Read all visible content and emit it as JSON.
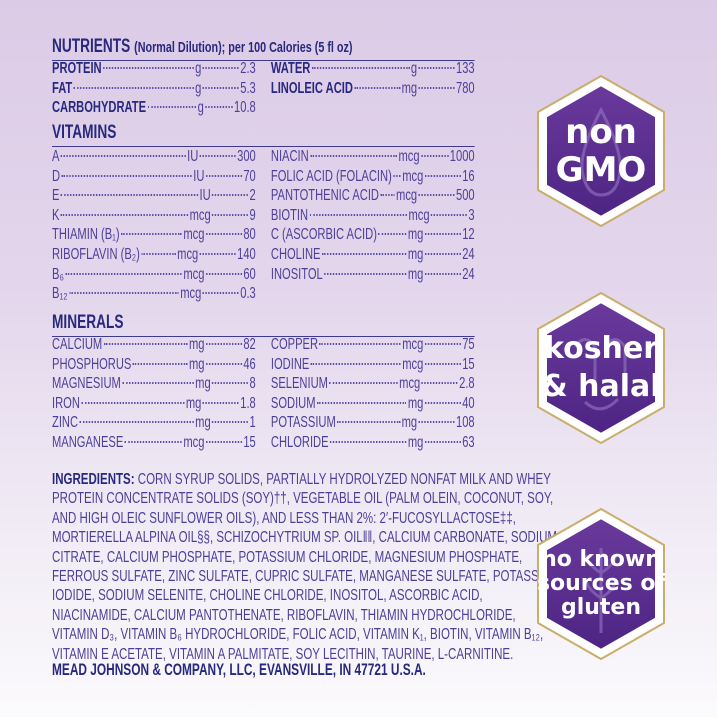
{
  "nutrients": {
    "title": "NUTRIENTS",
    "subtitle": "(Normal Dilution); per 100 Calories (5 fl oz)",
    "left": [
      {
        "name": "PROTEIN",
        "unit": "g",
        "value": "2.3"
      },
      {
        "name": "FAT",
        "unit": "g",
        "value": "5.3"
      },
      {
        "name": "CARBOHYDRATE",
        "unit": "g",
        "value": "10.8"
      }
    ],
    "right": [
      {
        "name": "WATER",
        "unit": "g",
        "value": "133"
      },
      {
        "name": "LINOLEIC ACID",
        "unit": "mg",
        "value": "780"
      }
    ]
  },
  "vitamins": {
    "title": "VITAMINS",
    "left": [
      {
        "name": "A",
        "unit": "IU",
        "value": "300"
      },
      {
        "name": "D",
        "unit": "IU",
        "value": "70"
      },
      {
        "name": "E",
        "unit": "IU",
        "value": "2"
      },
      {
        "name": "K",
        "unit": "mcg",
        "value": "9"
      },
      {
        "name": "THIAMIN (B₁)",
        "unit": "mcg",
        "value": "80"
      },
      {
        "name": "RIBOFLAVIN (B₂)",
        "unit": "mcg",
        "value": "140"
      },
      {
        "name": "B₆",
        "unit": "mcg",
        "value": "60"
      },
      {
        "name": "B₁₂",
        "unit": "mcg",
        "value": "0.3"
      }
    ],
    "right": [
      {
        "name": "NIACIN",
        "unit": "mcg",
        "value": "1000"
      },
      {
        "name": "FOLIC ACID (FOLACIN)",
        "unit": "mcg",
        "value": "16"
      },
      {
        "name": "PANTOTHENIC ACID",
        "unit": "mcg",
        "value": "500"
      },
      {
        "name": "BIOTIN",
        "unit": "mcg",
        "value": "3"
      },
      {
        "name": "C (ASCORBIC ACID)",
        "unit": "mg",
        "value": "12"
      },
      {
        "name": "CHOLINE",
        "unit": "mg",
        "value": "24"
      },
      {
        "name": "INOSITOL",
        "unit": "mg",
        "value": "24"
      }
    ]
  },
  "minerals": {
    "title": "MINERALS",
    "left": [
      {
        "name": "CALCIUM",
        "unit": "mg",
        "value": "82"
      },
      {
        "name": "PHOSPHORUS",
        "unit": "mg",
        "value": "46"
      },
      {
        "name": "MAGNESIUM",
        "unit": "mg",
        "value": "8"
      },
      {
        "name": "IRON",
        "unit": "mg",
        "value": "1.8"
      },
      {
        "name": "ZINC",
        "unit": "mg",
        "value": "1"
      },
      {
        "name": "MANGANESE",
        "unit": "mcg",
        "value": "15"
      }
    ],
    "right": [
      {
        "name": "COPPER",
        "unit": "mcg",
        "value": "75"
      },
      {
        "name": "IODINE",
        "unit": "mcg",
        "value": "15"
      },
      {
        "name": "SELENIUM",
        "unit": "mcg",
        "value": "2.8"
      },
      {
        "name": "SODIUM",
        "unit": "mg",
        "value": "40"
      },
      {
        "name": "POTASSIUM",
        "unit": "mg",
        "value": "108"
      },
      {
        "name": "CHLORIDE",
        "unit": "mg",
        "value": "63"
      }
    ]
  },
  "ingredients": {
    "label": "INGREDIENTS:",
    "lines": [
      "CORN SYRUP SOLIDS, PARTIALLY HYDROLYZED NONFAT MILK AND WHEY",
      "PROTEIN CONCENTRATE SOLIDS (SOY)††, VEGETABLE OIL (PALM OLEIN, COCONUT, SOY,",
      "AND HIGH OLEIC SUNFLOWER OILS), AND LESS THAN 2%: 2′-FUCOSYLLACTOSE‡‡,",
      "MORTIERELLA ALPINA OIL§§, SCHIZOCHYTRIUM SP. OIL‖‖, CALCIUM CARBONATE, SODIUM",
      "CITRATE, CALCIUM PHOSPHATE, POTASSIUM CHLORIDE, MAGNESIUM PHOSPHATE,",
      "FERROUS SULFATE, ZINC SULFATE, CUPRIC SULFATE, MANGANESE SULFATE, POTASSIUM",
      "IODIDE, SODIUM SELENITE, CHOLINE CHLORIDE, INOSITOL, ASCORBIC ACID,",
      "NIACINAMIDE, CALCIUM PANTOTHENATE, RIBOFLAVIN, THIAMIN HYDROCHLORIDE,",
      "VITAMIN D₃, VITAMIN B₆ HYDROCHLORIDE, FOLIC ACID, VITAMIN K₁, BIOTIN, VITAMIN B₁₂,",
      "VITAMIN E ACETATE, VITAMIN A PALMITATE, SOY LECITHIN, TAURINE, L-CARNITINE."
    ]
  },
  "manufacturer": "MEAD JOHNSON & COMPANY, LLC, EVANSVILLE, IN 47721 U.S.A.",
  "badges": [
    {
      "lines": [
        "non",
        "GMO"
      ],
      "icon": "drop-icon"
    },
    {
      "lines": [
        "kosher",
        "& halal"
      ],
      "icon": "kosher-halal-symbol-icon"
    },
    {
      "lines": [
        "no known",
        "sources of",
        "gluten"
      ],
      "icon": "wheat-icon"
    }
  ],
  "colors": {
    "heading": "#27287f",
    "text": "#4b3f99",
    "badge": "#5b2a8c",
    "badge_border": "#ffffff"
  }
}
